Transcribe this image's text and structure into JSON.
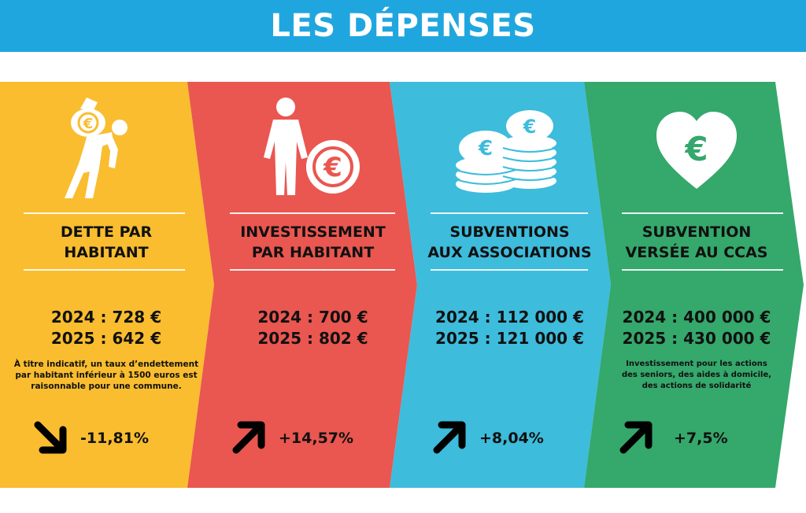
{
  "header": {
    "title": "LES DÉPENSES",
    "color": "#20a6df"
  },
  "panels": [
    {
      "id": "dette",
      "color": "#f9bd2f",
      "icon": "person-carrying-money-bag-icon",
      "title_line1": "DETTE PAR",
      "title_line2": "HABITANT",
      "value_2024": "2024 : 728 €",
      "value_2025": "2025 : 642 €",
      "note_lines": [
        "À titre indicatif, un taux d’endettement",
        "par habitant inférieur à 1500 euros est",
        "raisonnable pour une commune."
      ],
      "trend": "down",
      "change": "-11,81%"
    },
    {
      "id": "investissement",
      "color": "#e95750",
      "icon": "person-euro-coin-icon",
      "title_line1": "INVESTISSEMENT",
      "title_line2": "PAR HABITANT",
      "value_2024": "2024 : 700 €",
      "value_2025": "2025 : 802 €",
      "trend": "up",
      "change": "+14,57%"
    },
    {
      "id": "subventions",
      "color": "#3dbcdc",
      "icon": "euro-coin-stacks-icon",
      "title_line1": "SUBVENTIONS",
      "title_line2": "AUX ASSOCIATIONS",
      "value_2024": "2024 : 112 000 €",
      "value_2025": "2025 : 121 000 €",
      "trend": "up",
      "change": "+8,04%"
    },
    {
      "id": "ccas",
      "color": "#35a86c",
      "icon": "heart-euro-icon",
      "title_line1": "SUBVENTION",
      "title_line2": "VERSÉE AU CCAS",
      "value_2024": "2024 : 400 000 €",
      "value_2025": "2025 : 430 000 €",
      "note_lines": [
        "Investissement pour les actions",
        "des seniors, des aides à domicile,",
        "des actions de solidarité"
      ],
      "trend": "up",
      "change": "+7,5%"
    }
  ]
}
